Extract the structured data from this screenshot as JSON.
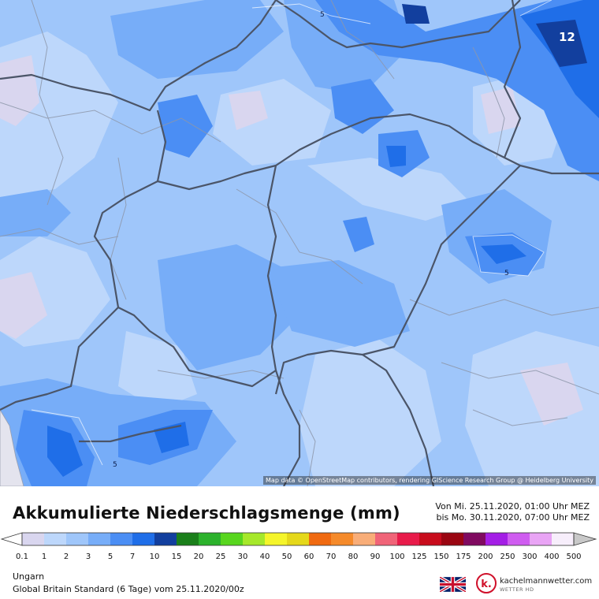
{
  "map": {
    "attribution": "Map data © OpenStreetMap contributors, rendering GIScience Research Group @ Heidelberg University",
    "contour_labels": [
      "5",
      "5",
      "5",
      "12"
    ]
  },
  "header": {
    "title": "Akkumulierte Niederschlagsmenge (mm)",
    "period_from": "Von Mi. 25.11.2020, 01:00 Uhr MEZ",
    "period_to": "bis Mo. 30.11.2020, 07:00 Uhr MEZ"
  },
  "legend": {
    "labels": [
      "0.1",
      "1",
      "2",
      "3",
      "5",
      "7",
      "10",
      "15",
      "20",
      "25",
      "30",
      "40",
      "50",
      "60",
      "70",
      "80",
      "90",
      "100",
      "125",
      "150",
      "175",
      "200",
      "250",
      "300",
      "400",
      "500"
    ],
    "colors": [
      "#d9d6ef",
      "#bdd7fb",
      "#9fc6fa",
      "#77adf8",
      "#4b8ef4",
      "#1f6ee8",
      "#123f9e",
      "#1a7f1a",
      "#2cb22c",
      "#58d61e",
      "#a6e82a",
      "#f5f52a",
      "#e5d81a",
      "#f06a10",
      "#f58a2a",
      "#f8ad78",
      "#f06478",
      "#e81b4a",
      "#c80c1c",
      "#9a0612",
      "#800a60",
      "#a41ee6",
      "#cf5cf0",
      "#e9a4f5",
      "#f7eefb",
      "#c8c8c8"
    ]
  },
  "footer": {
    "region": "Ungarn",
    "model": "Global Britain Standard (6 Tage) vom  25.11.2020/00z",
    "brand": "kachelmannwetter.com",
    "brand_sub": "WETTER HD",
    "logo_letter": "k."
  }
}
